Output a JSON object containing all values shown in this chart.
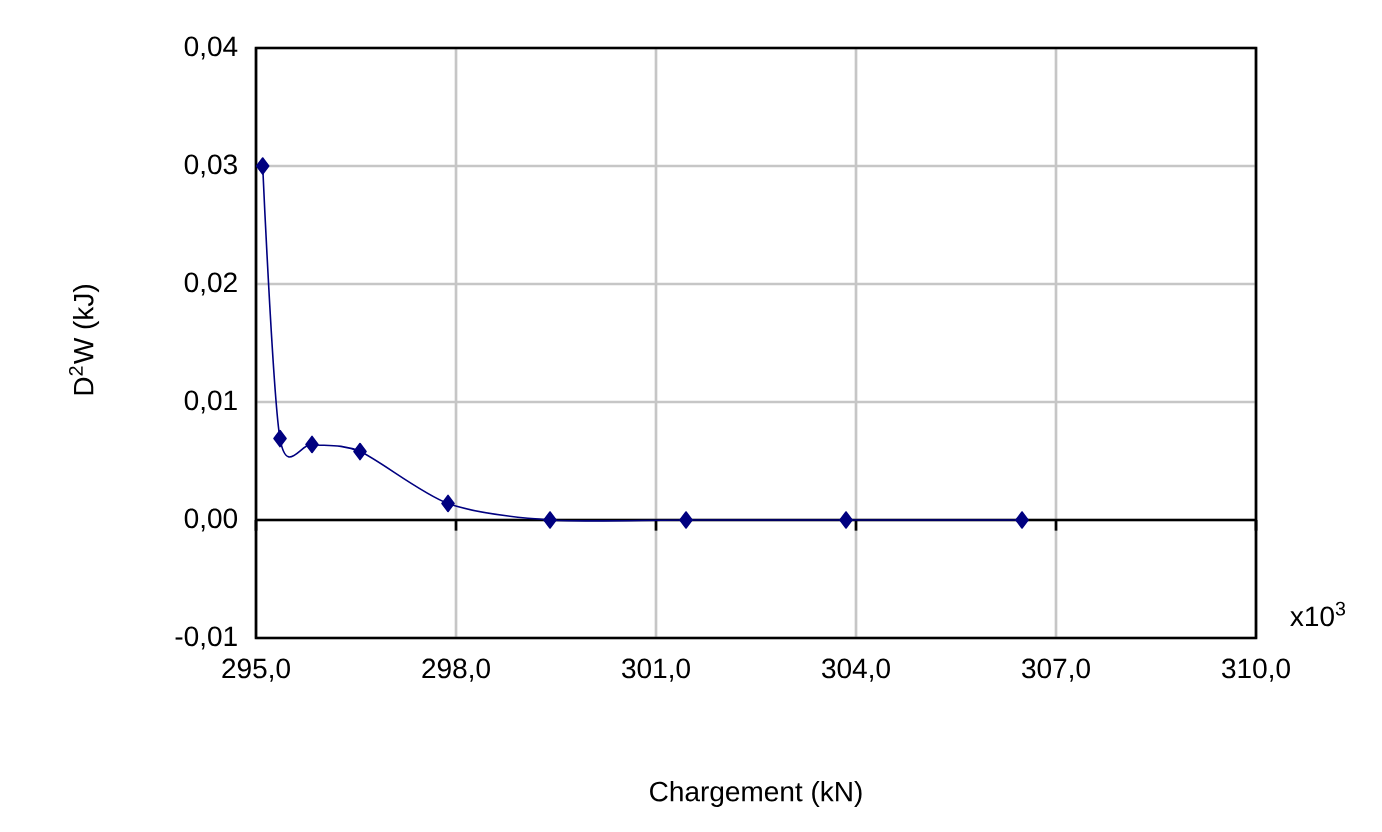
{
  "chart_data": {
    "type": "line",
    "xlabel": "Chargement (kN)",
    "ylabel": "D$^{2}$W (kJ)",
    "annotations": [
      "x10$^{3}$"
    ],
    "x": [
      295.1,
      295.36,
      295.84,
      296.56,
      297.88,
      299.41,
      301.45,
      303.85,
      306.49
    ],
    "series": [
      {
        "color": "#000080",
        "values": [
          0.03,
          0.0069,
          0.0064,
          0.0058,
          0.0014,
          0.0,
          0.0,
          0.0,
          0.0
        ]
      }
    ],
    "xlim": [
      295,
      310
    ],
    "ylim": [
      -0.01,
      0.04
    ],
    "xticks": [
      {
        "value": 295,
        "label": "295,0"
      },
      {
        "value": 298,
        "label": "298,0"
      },
      {
        "value": 301,
        "label": "301,0"
      },
      {
        "value": 304,
        "label": "304,0"
      },
      {
        "value": 307,
        "label": "307,0"
      },
      {
        "value": 310,
        "label": "310,0"
      }
    ],
    "yticks": [
      {
        "value": -0.01,
        "label": "-0,01"
      },
      {
        "value": 0.0,
        "label": "0,00"
      },
      {
        "value": 0.01,
        "label": "0,01"
      },
      {
        "value": 0.02,
        "label": "0,02"
      },
      {
        "value": 0.03,
        "label": "0,03"
      },
      {
        "value": 0.04,
        "label": "0,04"
      }
    ],
    "ref_lines": [
      {
        "axis": "y",
        "value": 0.0,
        "color": "#000000"
      }
    ],
    "grid": true,
    "marker": "diamond",
    "line_style": "solid"
  }
}
